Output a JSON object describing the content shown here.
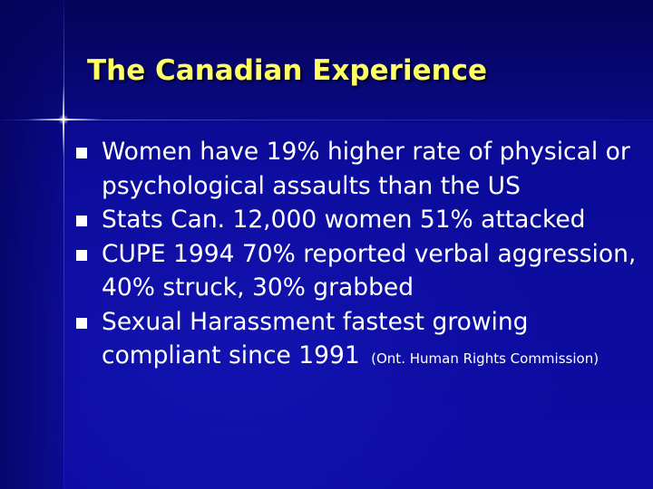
{
  "slide": {
    "title": "The Canadian Experience",
    "bullets": [
      {
        "text": "Women have 19% higher rate of physical or psychological assaults than the US"
      },
      {
        "text": "Stats Can. 12,000 women 51% attacked"
      },
      {
        "text": "CUPE 1994 70% reported verbal aggression, 40% struck, 30% grabbed"
      },
      {
        "text": "Sexual Harassment fastest growing compliant since 1991",
        "note": "(Ont. Human Rights Commission)"
      }
    ]
  },
  "colors": {
    "background": "#0a0a98",
    "title": "#ffff66",
    "body_text": "#ffffff",
    "bullet_marker": "#ffffff"
  },
  "icons": {
    "bullet": "square-bullet-icon",
    "decoration": "cross-sparkle-icon"
  }
}
